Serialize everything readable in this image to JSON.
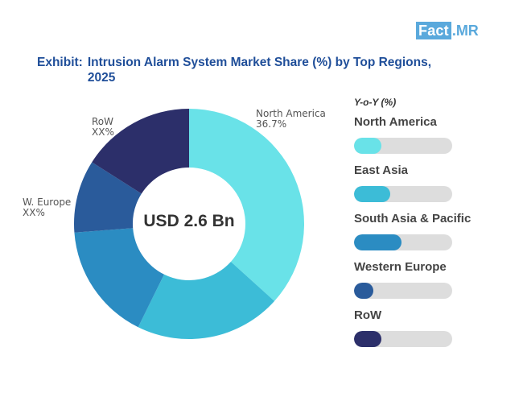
{
  "logo": {
    "part1": "Fact",
    "part2": ".MR"
  },
  "title": {
    "prefix": "Exhibit:",
    "line1": "Intrusion Alarm System Market Share (%) by Top Regions,",
    "line2": "2025"
  },
  "center_label": "USD 2.6 Bn",
  "slice_labels": [
    {
      "name": "North America",
      "value": "36.7%"
    },
    {
      "name": "RoW",
      "value": "XX%"
    },
    {
      "name": "W. Europe",
      "value": "XX%"
    }
  ],
  "legend": {
    "title": "Y-o-Y (%)",
    "items": [
      {
        "name": "North America",
        "color": "#69e2e8",
        "yoy_fraction": 0.28
      },
      {
        "name": "East Asia",
        "color": "#3cbcd7",
        "yoy_fraction": 0.37
      },
      {
        "name": "South Asia & Pacific",
        "color": "#2b8cc2",
        "yoy_fraction": 0.48
      },
      {
        "name": "Western Europe",
        "color": "#2a5b9b",
        "yoy_fraction": 0.2
      },
      {
        "name": "RoW",
        "color": "#2c2f6a",
        "yoy_fraction": 0.28
      }
    ]
  },
  "chart_data": {
    "type": "pie",
    "donut": true,
    "center_text": "USD 2.6 Bn",
    "categories": [
      "North America",
      "East Asia",
      "South Asia & Pacific",
      "Western Europe",
      "RoW"
    ],
    "values": [
      36.7,
      20.6,
      16.5,
      10.2,
      16.0
    ],
    "colors": [
      "#69e2e8",
      "#3cbcd7",
      "#2b8cc2",
      "#2a5b9b",
      "#2c2f6a"
    ],
    "data_labels": [
      "36.7%",
      "",
      "",
      "XX%",
      "XX%"
    ]
  }
}
